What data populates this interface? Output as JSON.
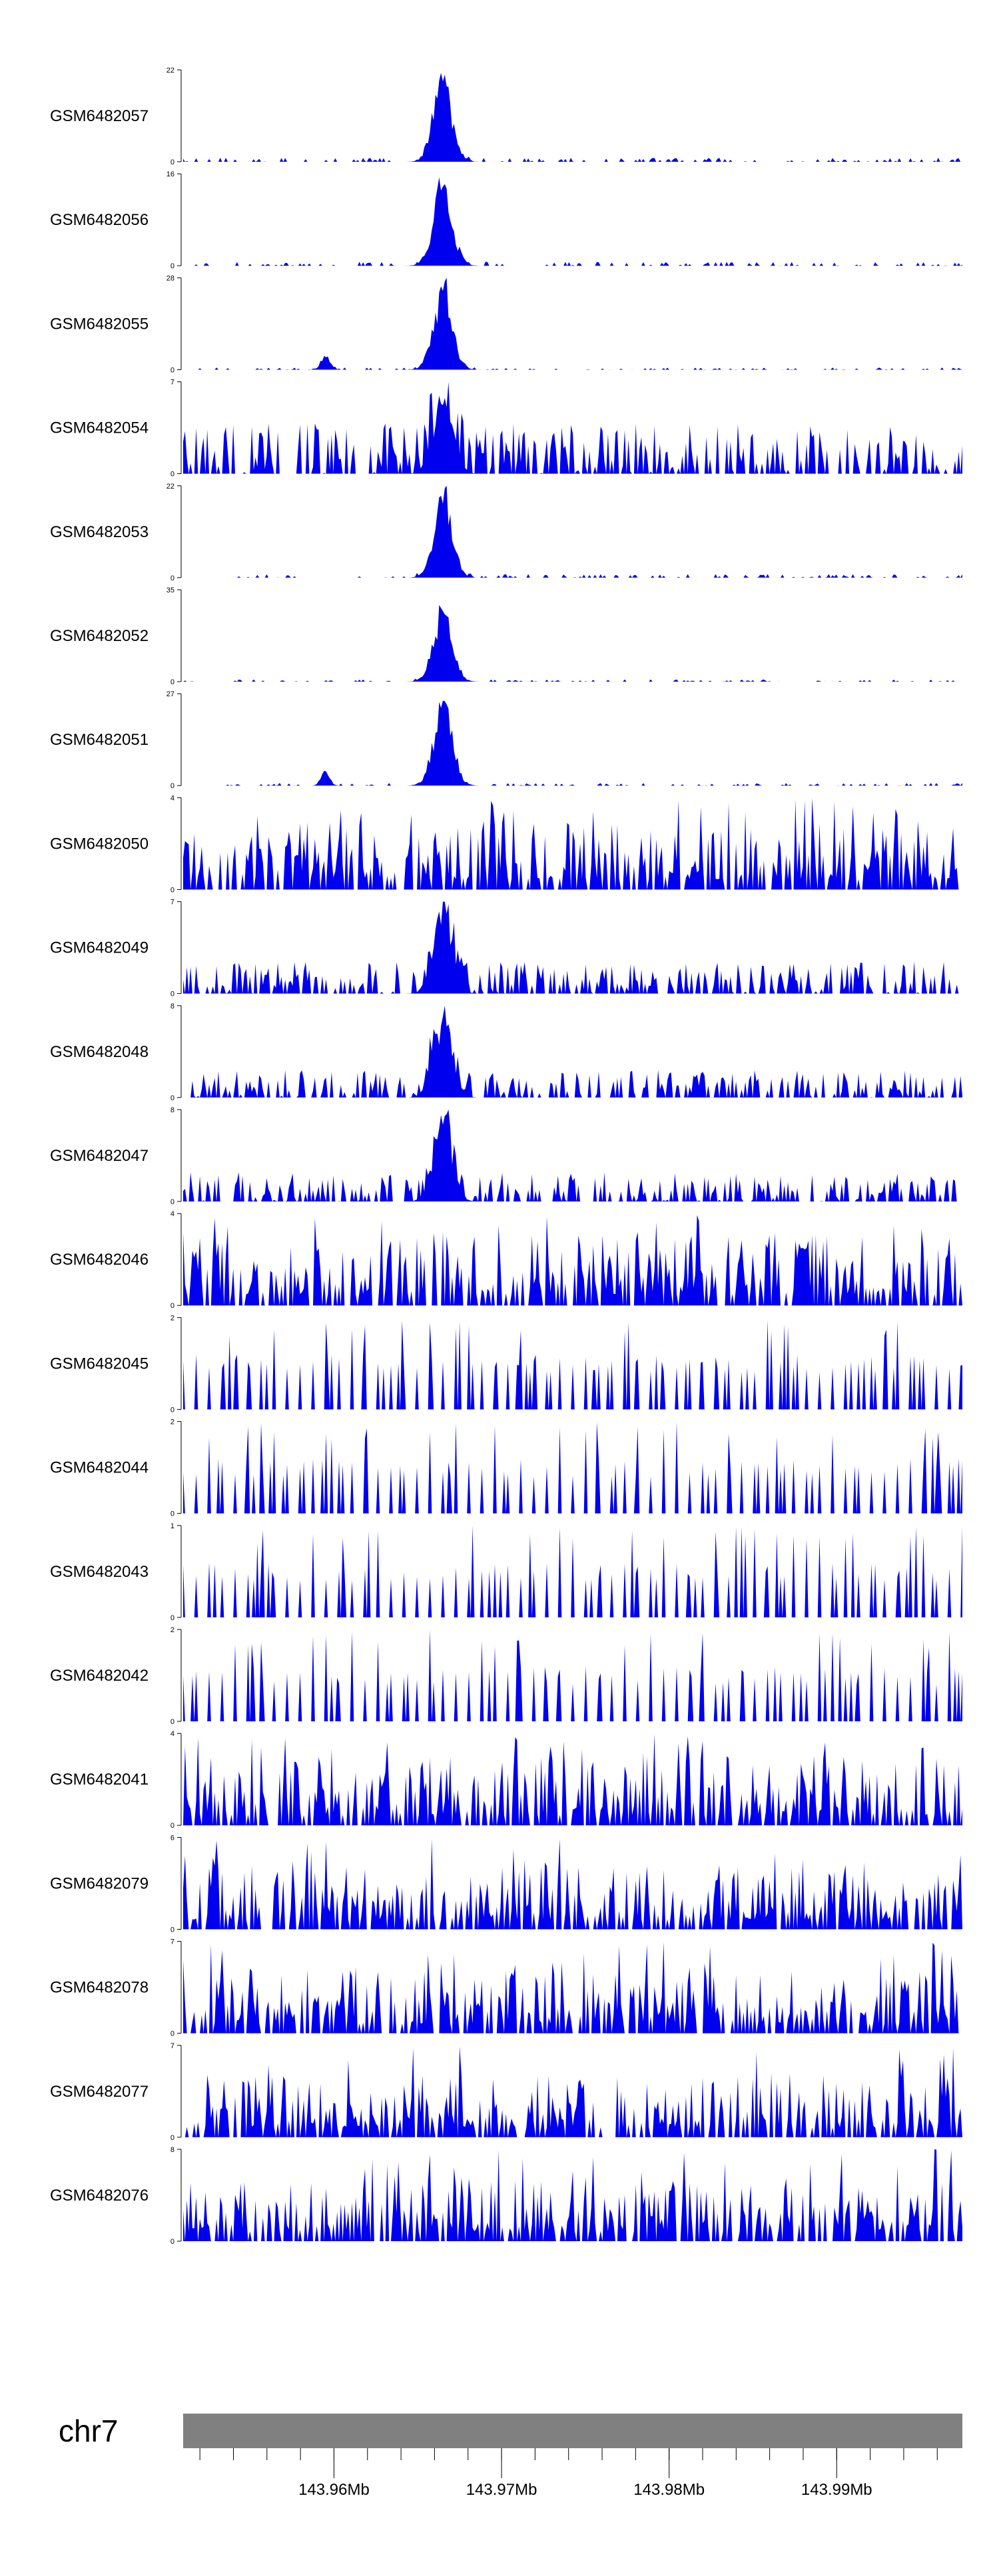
{
  "colors": {
    "coverage": "#0000ee",
    "ideogram": "#808080",
    "axis": "#000000"
  },
  "chart_data": {
    "type": "area",
    "layout": "stacked-tracks",
    "xrange_mb": [
      143.951,
      143.9975
    ],
    "tracks": [
      {
        "name": "GSM6482057",
        "ymax": 22,
        "peak": 22,
        "profile": "peak",
        "noise": 0.11,
        "lead": 0.0
      },
      {
        "name": "GSM6482056",
        "ymax": 16,
        "peak": 16,
        "profile": "peak",
        "noise": 0.11,
        "lead": 0.0
      },
      {
        "name": "GSM6482055",
        "ymax": 28,
        "peak": 28,
        "profile": "peak2",
        "noise": 0.06,
        "lead": 0.0
      },
      {
        "name": "GSM6482054",
        "ymax": 7,
        "peak": 7,
        "profile": "noisypeak",
        "noise": 0.55,
        "lead": 0.0
      },
      {
        "name": "GSM6482053",
        "ymax": 22,
        "peak": 22,
        "profile": "peak",
        "noise": 0.1,
        "lead": 0.07
      },
      {
        "name": "GSM6482052",
        "ymax": 35,
        "peak": 30,
        "profile": "peak",
        "noise": 0.06,
        "lead": 0.0
      },
      {
        "name": "GSM6482051",
        "ymax": 27,
        "peak": 27,
        "profile": "peak2",
        "noise": 0.07,
        "lead": 0.05
      },
      {
        "name": "GSM6482050",
        "ymax": 4,
        "peak": 4,
        "profile": "noise",
        "noise": 0.75,
        "lead": 0.0
      },
      {
        "name": "GSM6482049",
        "ymax": 7,
        "peak": 7,
        "profile": "noisypeak",
        "noise": 0.35,
        "lead": 0.0
      },
      {
        "name": "GSM6482048",
        "ymax": 8,
        "peak": 8,
        "profile": "noisypeak",
        "noise": 0.3,
        "lead": 0.0
      },
      {
        "name": "GSM6482047",
        "ymax": 8,
        "peak": 8,
        "profile": "noisypeak",
        "noise": 0.32,
        "lead": 0.0
      },
      {
        "name": "GSM6482046",
        "ymax": 4,
        "peak": 4,
        "profile": "noise",
        "noise": 0.8,
        "lead": 0.0
      },
      {
        "name": "GSM6482045",
        "ymax": 2,
        "peak": 2,
        "profile": "sparse",
        "noise": 1.0,
        "lead": 0.0
      },
      {
        "name": "GSM6482044",
        "ymax": 2,
        "peak": 2,
        "profile": "sparse",
        "noise": 1.0,
        "lead": 0.0
      },
      {
        "name": "GSM6482043",
        "ymax": 1,
        "peak": 1,
        "profile": "sparse",
        "noise": 1.0,
        "lead": 0.0
      },
      {
        "name": "GSM6482042",
        "ymax": 2,
        "peak": 2,
        "profile": "sparse",
        "noise": 1.0,
        "lead": 0.0
      },
      {
        "name": "GSM6482041",
        "ymax": 4,
        "peak": 4,
        "profile": "noise",
        "noise": 0.75,
        "lead": 0.0
      },
      {
        "name": "GSM6482079",
        "ymax": 6,
        "peak": 6,
        "profile": "noise",
        "noise": 0.7,
        "lead": 0.0
      },
      {
        "name": "GSM6482078",
        "ymax": 7,
        "peak": 7,
        "profile": "noise",
        "noise": 0.7,
        "lead": 0.0
      },
      {
        "name": "GSM6482077",
        "ymax": 7,
        "peak": 7,
        "profile": "noise",
        "noise": 0.7,
        "lead": 0.0
      },
      {
        "name": "GSM6482076",
        "ymax": 8,
        "peak": 8,
        "profile": "noise",
        "noise": 0.7,
        "lead": 0.0
      }
    ],
    "chromosome": "chr7",
    "xticks": [
      {
        "value": 143.96,
        "label": "143.96Mb"
      },
      {
        "value": 143.97,
        "label": "143.97Mb"
      },
      {
        "value": 143.98,
        "label": "143.98Mb"
      },
      {
        "value": 143.99,
        "label": "143.99Mb"
      }
    ],
    "minor_tick_step_mb": 0.002
  }
}
